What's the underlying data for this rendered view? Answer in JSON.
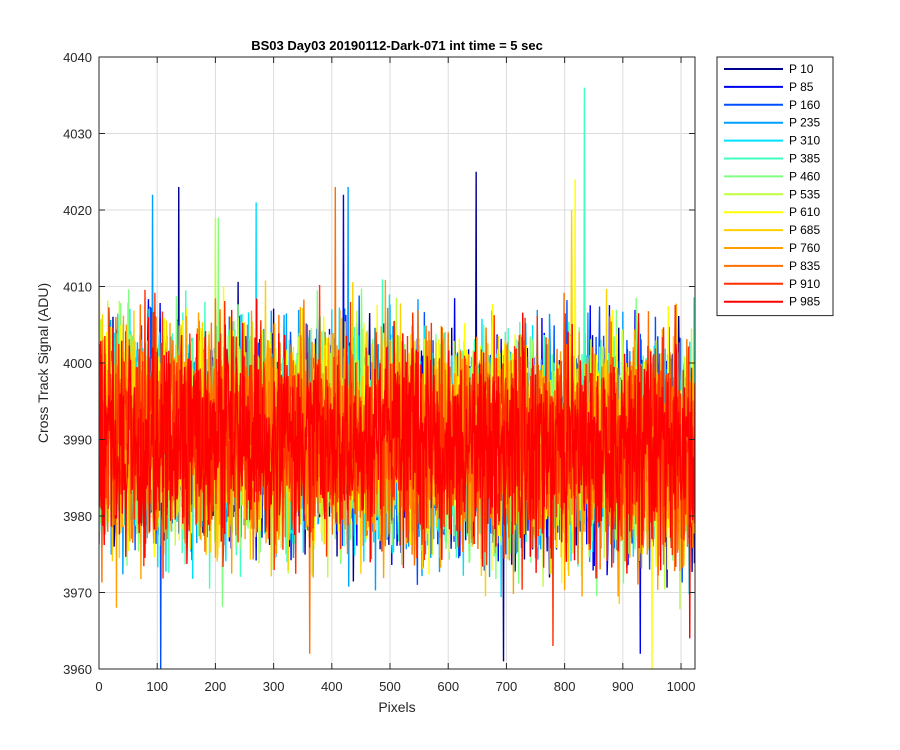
{
  "chart_data": {
    "type": "line",
    "title": "BS03 Day03 20190112-Dark-071 int time = 5 sec",
    "xlabel": "Pixels",
    "ylabel": "Cross Track Signal (ADU)",
    "xlim": [
      0,
      1024
    ],
    "ylim": [
      3960,
      4040
    ],
    "xticks": [
      0,
      100,
      200,
      300,
      400,
      500,
      600,
      700,
      800,
      900,
      1000
    ],
    "yticks": [
      3960,
      3970,
      3980,
      3990,
      4000,
      4010,
      4020,
      4030,
      4040
    ],
    "grid": true,
    "legend_position": "outside-top-right",
    "series": [
      {
        "name": "P 10",
        "color": "#00008f",
        "mean": 3991,
        "spread": 7,
        "peaks": [
          [
            137,
            4023
          ],
          [
            648,
            4025
          ],
          [
            695,
            3961
          ]
        ]
      },
      {
        "name": "P 85",
        "color": "#0000f0",
        "mean": 3991,
        "spread": 7,
        "peaks": [
          [
            420,
            4022
          ],
          [
            930,
            3962
          ]
        ]
      },
      {
        "name": "P 160",
        "color": "#0050ff",
        "mean": 3991,
        "spread": 7,
        "peaks": [
          [
            106,
            3960
          ]
        ]
      },
      {
        "name": "P 235",
        "color": "#00a0ff",
        "mean": 3991,
        "spread": 7,
        "peaks": [
          [
            92,
            4022
          ],
          [
            428,
            4023
          ]
        ]
      },
      {
        "name": "P 310",
        "color": "#00e0ff",
        "mean": 3991,
        "spread": 7,
        "peaks": [
          [
            270,
            4021
          ]
        ]
      },
      {
        "name": "P 385",
        "color": "#40ffbf",
        "mean": 3991,
        "spread": 7,
        "peaks": [
          [
            834,
            4036
          ]
        ]
      },
      {
        "name": "P 460",
        "color": "#80ff80",
        "mean": 3991,
        "spread": 7,
        "peaks": [
          [
            205,
            4019
          ]
        ]
      },
      {
        "name": "P 535",
        "color": "#bfff40",
        "mean": 3991,
        "spread": 7,
        "peaks": [
          [
            200,
            4019
          ]
        ]
      },
      {
        "name": "P 610",
        "color": "#ffff00",
        "mean": 3991,
        "spread": 7,
        "peaks": [
          [
            818,
            4024
          ],
          [
            950,
            3960
          ]
        ]
      },
      {
        "name": "P 685",
        "color": "#ffd000",
        "mean": 3991,
        "spread": 7,
        "peaks": [
          [
            0,
            4019
          ],
          [
            812,
            4020
          ]
        ]
      },
      {
        "name": "P 760",
        "color": "#ffa000",
        "mean": 3991,
        "spread": 7,
        "peaks": [
          [
            30,
            3968
          ]
        ]
      },
      {
        "name": "P 835",
        "color": "#ff7000",
        "mean": 3991,
        "spread": 7,
        "peaks": [
          [
            406,
            4023
          ],
          [
            362,
            3962
          ]
        ]
      },
      {
        "name": "P 910",
        "color": "#ff3000",
        "mean": 3991,
        "spread": 7,
        "peaks": [
          [
            780,
            3963
          ]
        ]
      },
      {
        "name": "P 985",
        "color": "#ff0000",
        "mean": 3991,
        "spread": 7,
        "peaks": [
          [
            1015,
            3964
          ]
        ]
      }
    ]
  }
}
